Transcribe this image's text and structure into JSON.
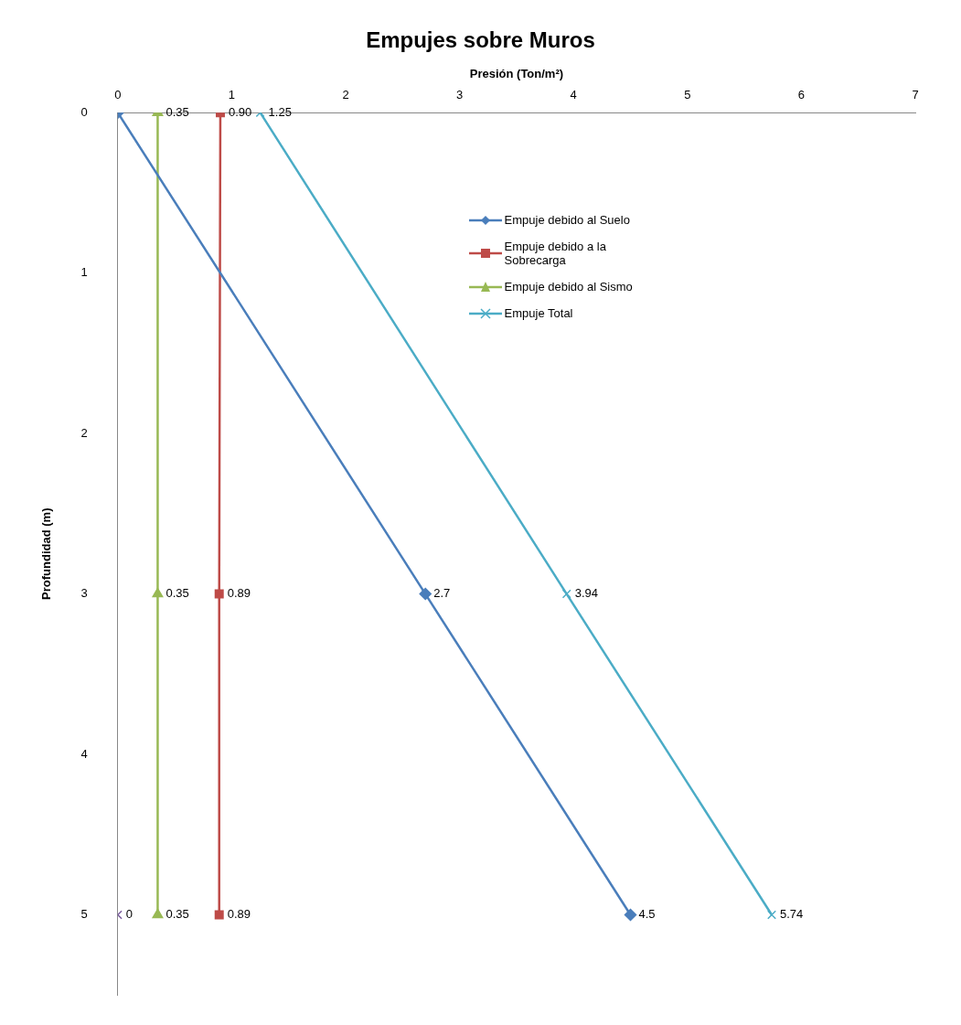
{
  "chart_data": {
    "type": "line",
    "orientation": "horizontal",
    "title": "Empujes sobre Muros",
    "xlabel": "Presión (Ton/m²)",
    "ylabel": "Profundidad (m)",
    "xlim": [
      0,
      7
    ],
    "xticks": [
      0,
      1,
      2,
      3,
      4,
      5,
      6,
      7
    ],
    "ylim": [
      5.5,
      0
    ],
    "yticks": [
      0,
      1,
      2,
      3,
      4,
      5
    ],
    "grid": false,
    "legend": "top right",
    "series": [
      {
        "name": "Empuje debido al Suelo",
        "color": "#4a7ebb",
        "marker": "diamond",
        "x": [
          0,
          3,
          5
        ],
        "values": [
          0,
          2.7,
          4.5
        ],
        "value_labels": [
          null,
          "2.7",
          "4.5"
        ]
      },
      {
        "name": "Empuje debido a la Sobrecarga",
        "color": "#be4b48",
        "marker": "square",
        "x": [
          0,
          3,
          5
        ],
        "values": [
          0.9,
          0.89,
          0.89
        ],
        "value_labels": [
          "0.90",
          "0.89",
          "0.89"
        ]
      },
      {
        "name": "Empuje debido al Sismo",
        "color": "#98b954",
        "marker": "triangle",
        "x": [
          0,
          3,
          5
        ],
        "values": [
          0.35,
          0.35,
          0.35
        ],
        "value_labels": [
          "0.35",
          "0.35",
          "0.35"
        ]
      },
      {
        "name": "Empuje Total",
        "color": "#4bacc6",
        "marker": "cross",
        "x": [
          0,
          3,
          5
        ],
        "values": [
          1.25,
          3.94,
          5.74
        ],
        "value_labels": [
          "1.25",
          "3.94",
          "5.74"
        ]
      },
      {
        "color": "#7d60a0",
        "marker": "cross",
        "x": [
          5
        ],
        "values": [
          0
        ],
        "value_labels": [
          "0"
        ]
      }
    ]
  }
}
